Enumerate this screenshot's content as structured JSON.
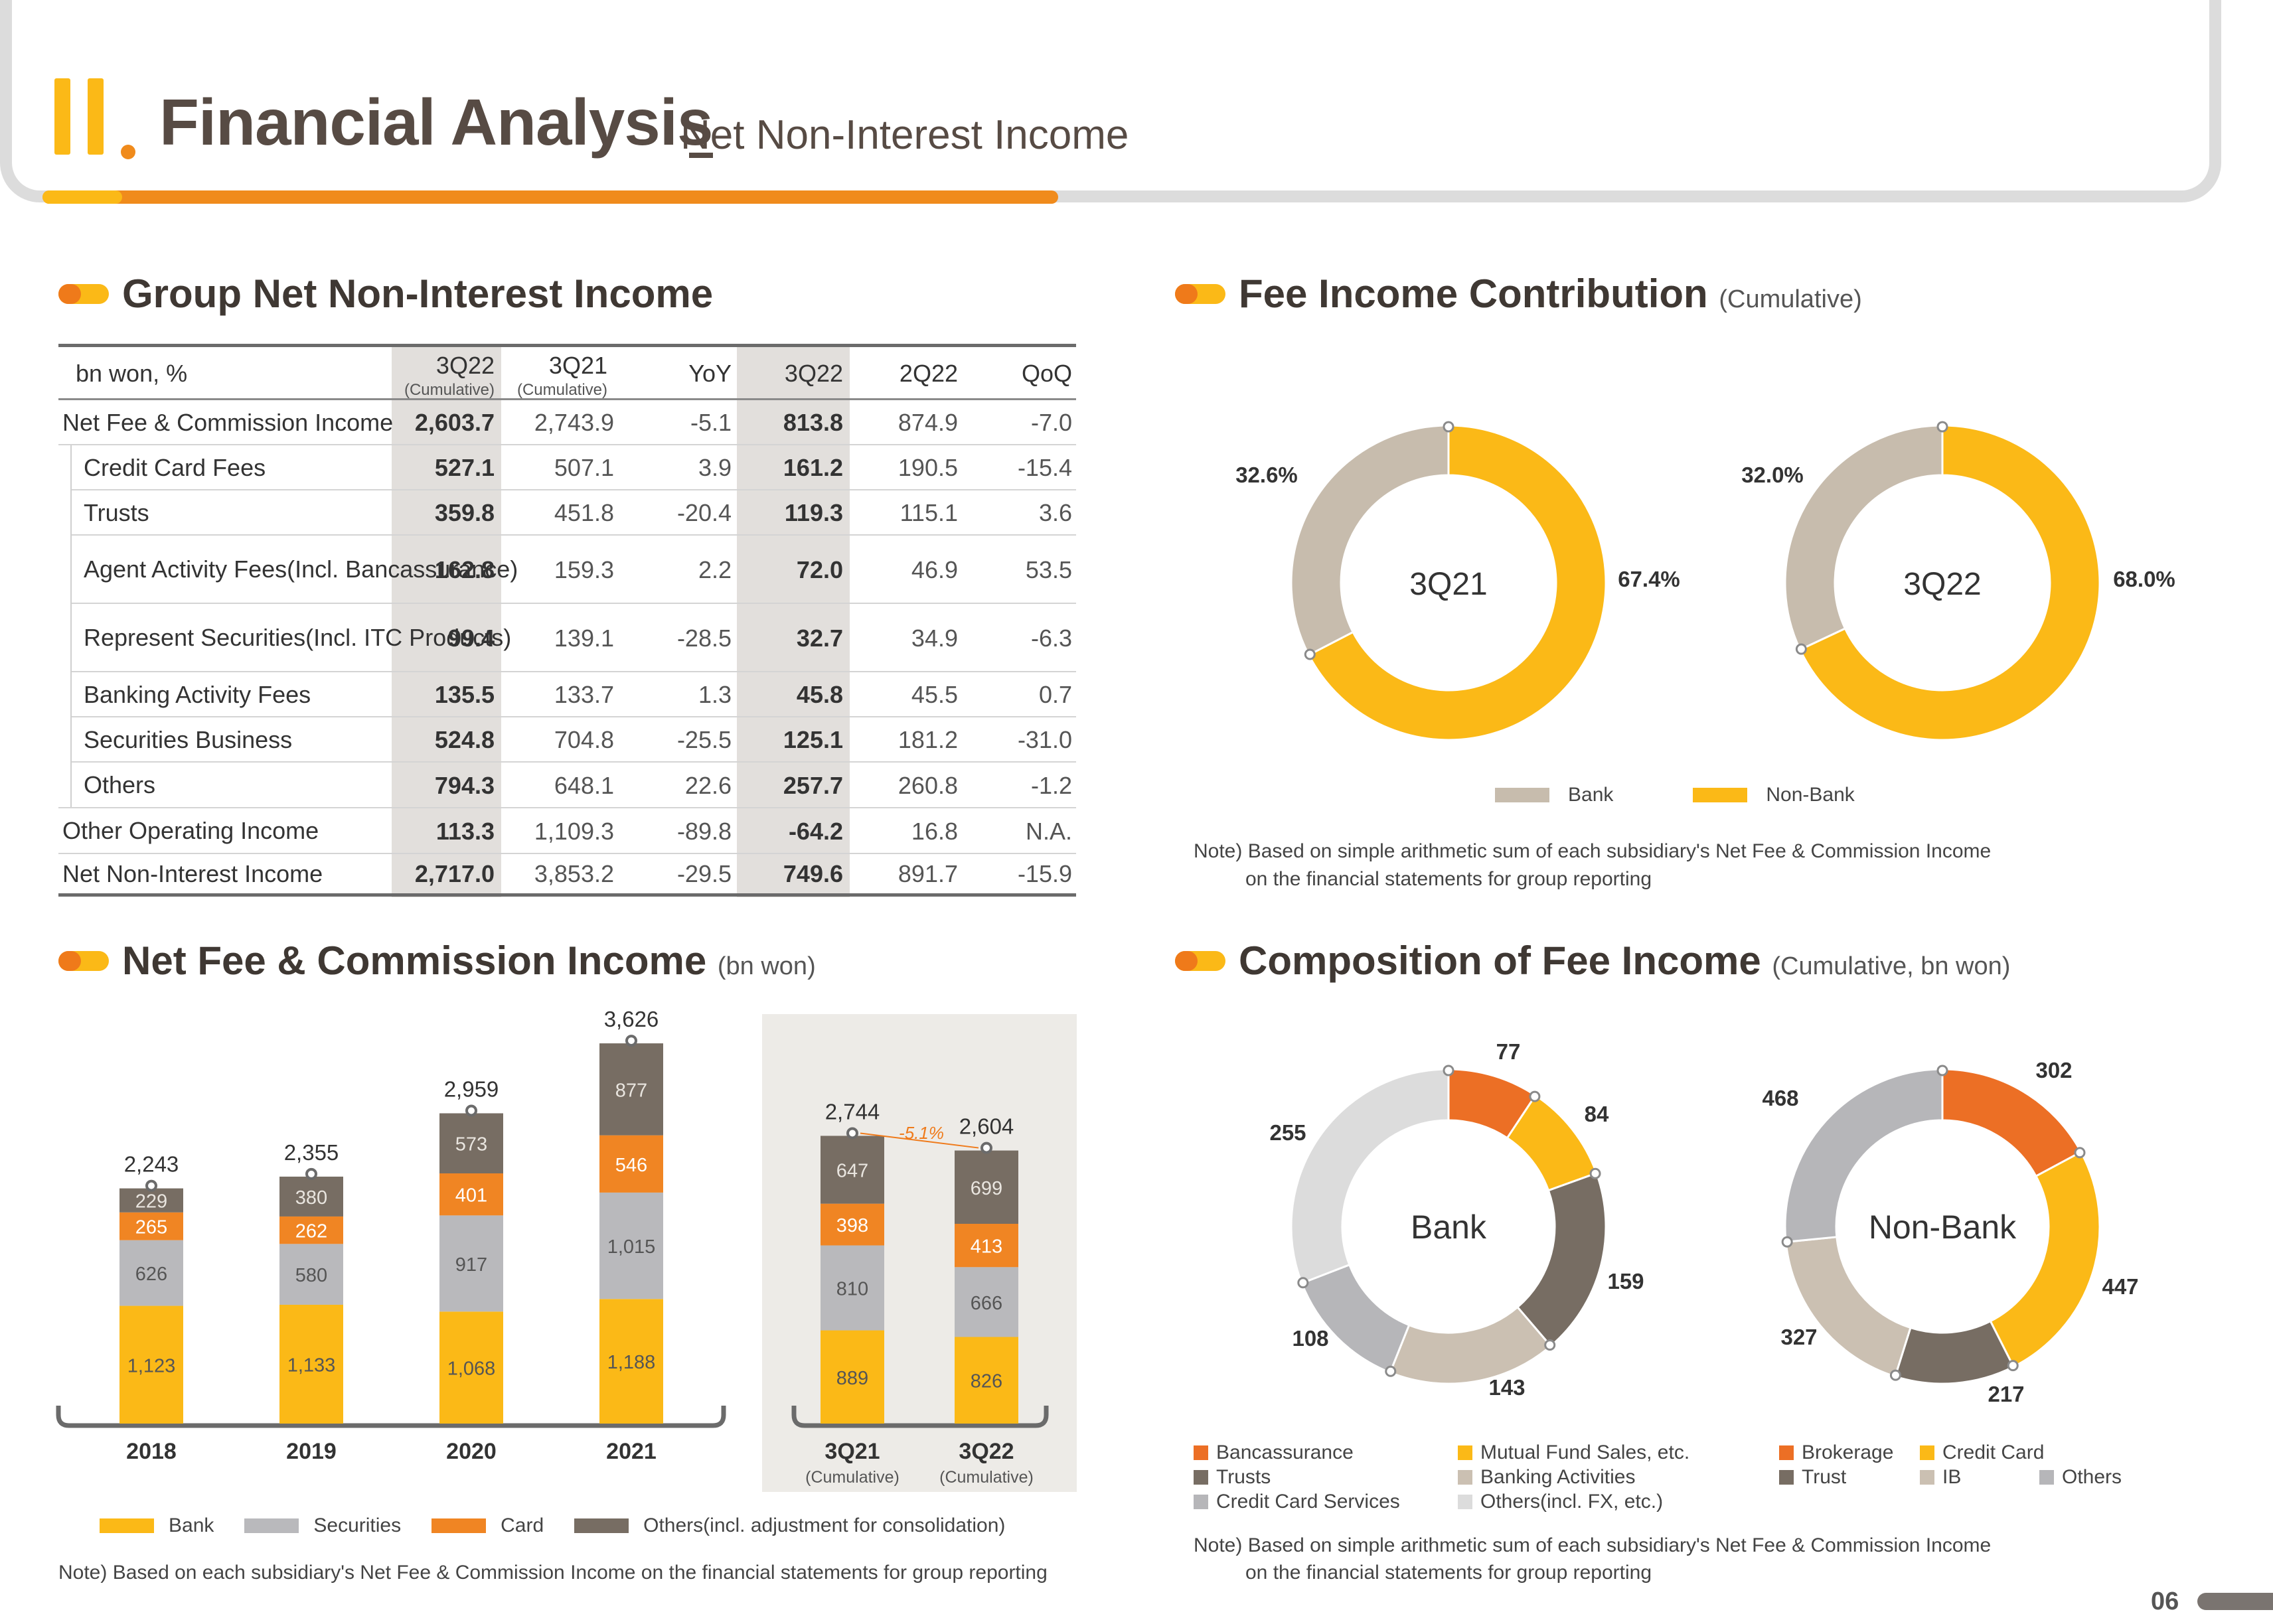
{
  "header": {
    "title": "Financial Analysis",
    "subtitle": "Net Non-Interest Income",
    "page_number": "06"
  },
  "sections": {
    "group_nnii": "Group Net Non-Interest Income",
    "fee_contrib": "Fee Income Contribution",
    "fee_contrib_sub": "(Cumulative)",
    "nfci": "Net Fee & Commission Income",
    "nfci_sub": "(bn won)",
    "composition": "Composition of Fee Income",
    "composition_sub": "(Cumulative, bn won)"
  },
  "table": {
    "unit": "bn won, %",
    "headers": [
      {
        "label": "3Q22",
        "sub": "(Cumulative)"
      },
      {
        "label": "3Q21",
        "sub": "(Cumulative)"
      },
      {
        "label": "YoY",
        "sub": ""
      },
      {
        "label": "3Q22",
        "sub": ""
      },
      {
        "label": "2Q22",
        "sub": ""
      },
      {
        "label": "QoQ",
        "sub": ""
      }
    ],
    "rows": [
      {
        "label": "Net Fee & Commission Income",
        "values": [
          "2,603.7",
          "2,743.9",
          "-5.1",
          "813.8",
          "874.9",
          "-7.0"
        ]
      },
      {
        "label": "Credit Card Fees",
        "values": [
          "527.1",
          "507.1",
          "3.9",
          "161.2",
          "190.5",
          "-15.4"
        ]
      },
      {
        "label": "Trusts",
        "values": [
          "359.8",
          "451.8",
          "-20.4",
          "119.3",
          "115.1",
          "3.6"
        ]
      },
      {
        "label": "Agent Activity Fees",
        "label2": "(Incl. Bancassurance)",
        "values": [
          "162.8",
          "159.3",
          "2.2",
          "72.0",
          "46.9",
          "53.5"
        ]
      },
      {
        "label": "Represent Securities",
        "label2": "(Incl. ITC Products)",
        "values": [
          "99.4",
          "139.1",
          "-28.5",
          "32.7",
          "34.9",
          "-6.3"
        ]
      },
      {
        "label": "Banking Activity Fees",
        "values": [
          "135.5",
          "133.7",
          "1.3",
          "45.8",
          "45.5",
          "0.7"
        ]
      },
      {
        "label": "Securities Business",
        "values": [
          "524.8",
          "704.8",
          "-25.5",
          "125.1",
          "181.2",
          "-31.0"
        ]
      },
      {
        "label": "Others",
        "values": [
          "794.3",
          "648.1",
          "22.6",
          "257.7",
          "260.8",
          "-1.2"
        ]
      },
      {
        "label": "Other Operating Income",
        "values": [
          "113.3",
          "1,109.3",
          "-89.8",
          "-64.2",
          "16.8",
          "N.A."
        ]
      },
      {
        "label": "Net Non-Interest Income",
        "values": [
          "2,717.0",
          "3,853.2",
          "-29.5",
          "749.6",
          "891.7",
          "-15.9"
        ]
      }
    ]
  },
  "chart_data": [
    {
      "type": "bar",
      "stacked": true,
      "title": "Net Fee & Commission Income",
      "categories": [
        "2018",
        "2019",
        "2020",
        "2021",
        "3Q21",
        "3Q22"
      ],
      "category_subs": [
        "",
        "",
        "",
        "",
        "(Cumulative)",
        "(Cumulative)"
      ],
      "series": [
        {
          "name": "Bank",
          "color": "#fbb917",
          "values": [
            1123,
            1133,
            1068,
            1188,
            889,
            826
          ],
          "labels": [
            "1,123",
            "1,133",
            "1,068",
            "1,188",
            "889",
            "826"
          ]
        },
        {
          "name": "Securities",
          "color": "#b9b9bc",
          "values": [
            626,
            580,
            917,
            1015,
            810,
            666
          ],
          "labels": [
            "626",
            "580",
            "917",
            "1,015",
            "810",
            "666"
          ]
        },
        {
          "name": "Card",
          "color": "#f08523",
          "values": [
            265,
            262,
            401,
            546,
            398,
            413
          ],
          "labels": [
            "265",
            "262",
            "401",
            "546",
            "398",
            "413"
          ]
        },
        {
          "name": "Others(incl. adjustment for consolidation)",
          "color": "#776d63",
          "values": [
            229,
            380,
            573,
            877,
            647,
            699
          ],
          "labels": [
            "229",
            "380",
            "573",
            "877",
            "647",
            "699"
          ]
        }
      ],
      "totals": [
        "2,243",
        "2,355",
        "2,959",
        "3,626",
        "2,744",
        "2,604"
      ],
      "change_label": "-5.1%",
      "note": "Note) Based on each subsidiary's Net Fee & Commission Income on the financial statements for group reporting"
    },
    {
      "type": "pie",
      "title": "3Q21",
      "slices": [
        {
          "name": "Non-Bank",
          "value": 67.4,
          "label": "67.4%",
          "color": "#fbb917"
        },
        {
          "name": "Bank",
          "value": 32.6,
          "label": "32.6%",
          "color": "#c7bcad"
        }
      ]
    },
    {
      "type": "pie",
      "title": "3Q22",
      "slices": [
        {
          "name": "Non-Bank",
          "value": 68.0,
          "label": "68.0%",
          "color": "#fbb917"
        },
        {
          "name": "Bank",
          "value": 32.0,
          "label": "32.0%",
          "color": "#c7bcad"
        }
      ]
    },
    {
      "type": "pie",
      "title": "Bank",
      "slices": [
        {
          "name": "Bancassurance",
          "value": 77,
          "label": "77",
          "color": "#ec6f25"
        },
        {
          "name": "Mutual Fund Sales, etc.",
          "value": 84,
          "label": "84",
          "color": "#fbb917"
        },
        {
          "name": "Trusts",
          "value": 159,
          "label": "159",
          "color": "#776d63"
        },
        {
          "name": "Banking Activities",
          "value": 143,
          "label": "143",
          "color": "#cbc0b2"
        },
        {
          "name": "Credit Card Services",
          "value": 108,
          "label": "108",
          "color": "#b6b6b9"
        },
        {
          "name": "Others(incl. FX, etc.)",
          "value": 255,
          "label": "255",
          "color": "#dcdcdc"
        }
      ]
    },
    {
      "type": "pie",
      "title": "Non-Bank",
      "slices": [
        {
          "name": "Brokerage",
          "value": 302,
          "label": "302",
          "color": "#ec6f25"
        },
        {
          "name": "Credit Card",
          "value": 447,
          "label": "447",
          "color": "#fbb917"
        },
        {
          "name": "Trust",
          "value": 217,
          "label": "217",
          "color": "#776d63"
        },
        {
          "name": "IB",
          "value": 327,
          "label": "327",
          "color": "#cbc0b2"
        },
        {
          "name": "Others",
          "value": 468,
          "label": "468",
          "color": "#b6b6b9"
        }
      ]
    }
  ],
  "fee_contrib_legend": [
    "Bank",
    "Non-Bank"
  ],
  "fee_contrib_note": [
    "Note) Based on simple arithmetic sum of each subsidiary's Net Fee & Commission Income",
    "on the financial statements for group reporting"
  ],
  "composition_note": [
    "Note) Based on simple arithmetic sum of each subsidiary's Net Fee & Commission Income",
    "on the financial statements for group reporting"
  ],
  "bank_legend": [
    "Bancassurance",
    "Mutual Fund Sales, etc.",
    "Trusts",
    "Banking Activities",
    "Credit Card Services",
    "Others(incl. FX, etc.)"
  ],
  "nonbank_legend": [
    "Brokerage",
    "Credit Card",
    "Trust",
    "IB",
    "Others"
  ],
  "colors": {
    "yellow": "#fbb917",
    "orange": "#f08523",
    "dark": "#776d63",
    "gray": "#b9b9bc",
    "beige": "#c7bcad"
  }
}
